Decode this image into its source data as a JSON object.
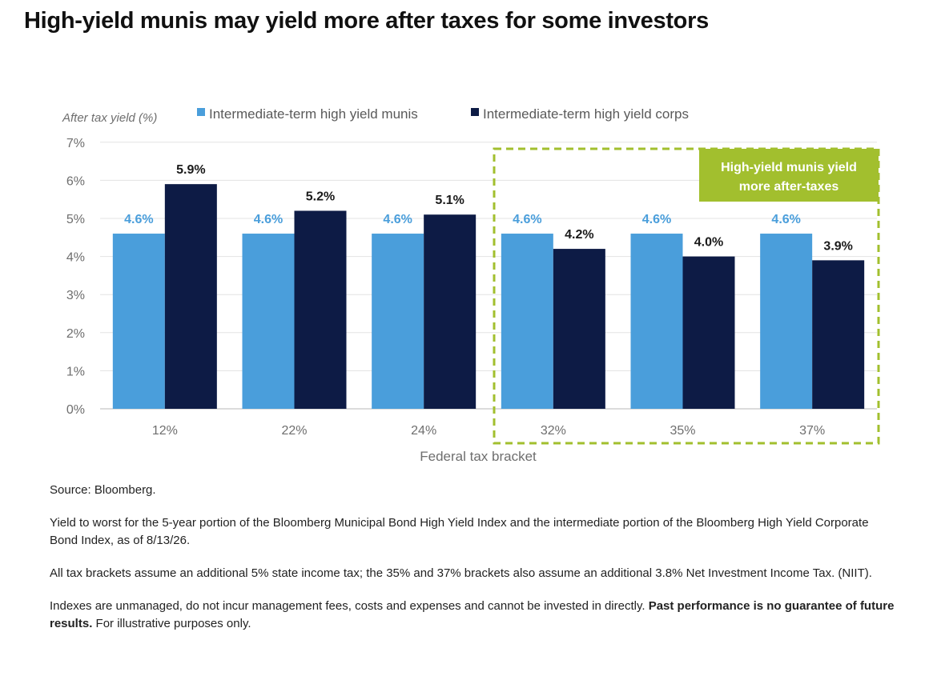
{
  "title": "High-yield munis may yield more after taxes for some investors",
  "chart_data": {
    "type": "bar",
    "ylabel": "After tax yield (%)",
    "xlabel": "Federal tax bracket",
    "categories": [
      "12%",
      "22%",
      "24%",
      "32%",
      "35%",
      "37%"
    ],
    "series": [
      {
        "name": "Intermediate-term high yield munis",
        "values": [
          4.6,
          4.6,
          4.6,
          4.6,
          4.6,
          4.6
        ],
        "labels": [
          "4.6%",
          "4.6%",
          "4.6%",
          "4.6%",
          "4.6%",
          "4.6%"
        ],
        "color": "#4a9edb",
        "label_color": "#4a9edb"
      },
      {
        "name": "Intermediate-term high yield corps",
        "values": [
          5.9,
          5.2,
          5.1,
          4.2,
          4.0,
          3.9
        ],
        "labels": [
          "5.9%",
          "5.2%",
          "5.1%",
          "4.2%",
          "4.0%",
          "3.9%"
        ],
        "color": "#0d1b45",
        "label_color": "#1a1a1a"
      }
    ],
    "ylim": [
      0,
      7
    ],
    "yticks": [
      "0%",
      "1%",
      "2%",
      "3%",
      "4%",
      "5%",
      "6%",
      "7%"
    ],
    "grid": true,
    "legend": "top",
    "highlight": {
      "text_line1": "High-yield munis yield",
      "text_line2": "more after-taxes",
      "categories": [
        "32%",
        "35%",
        "37%"
      ],
      "color": "#a2bf2e"
    }
  },
  "notes": {
    "source": "Source: Bloomberg.",
    "methodology": "Yield to worst for the 5-year portion of the Bloomberg Municipal Bond High Yield Index and the intermediate portion of the Bloomberg High Yield Corporate Bond Index, as of 8/13/26.",
    "tax_assumptions": "All tax brackets assume an additional 5% state income tax; the 35% and 37% brackets also assume an additional 3.8% Net Investment Income Tax. (NIIT).",
    "disclaimer_start": "Indexes are unmanaged, do not incur management fees, costs and expenses and cannot be invested in directly. ",
    "disclaimer_bold": "Past performance is no guarantee of future results.",
    "disclaimer_end": " For illustrative purposes only."
  }
}
